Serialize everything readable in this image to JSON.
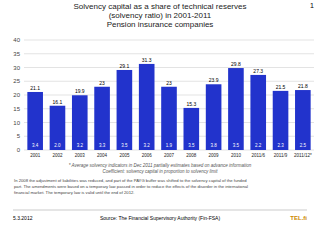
{
  "chart_data": {
    "type": "bar",
    "title": [
      "Solvency capital as a share of technical reserves",
      "(solvency ratio) in 2001-2011",
      "Pension insurance companies"
    ],
    "categories": [
      "2001",
      "2002",
      "2003",
      "2004",
      "2005",
      "2006",
      "2007",
      "2008",
      "2009",
      "2010",
      "2011/6",
      "2011/9",
      "2011/12*"
    ],
    "values": [
      21.1,
      16.1,
      19.9,
      23,
      29.1,
      31.3,
      23.0,
      15.3,
      23.9,
      29.8,
      27.3,
      21.5,
      21.8
    ],
    "coefficients": [
      3.4,
      2.0,
      3.2,
      3.3,
      3.5,
      3.2,
      1.9,
      3.5,
      3.8,
      3.5,
      2.2,
      2.3,
      2.5
    ],
    "color": "#2233CC",
    "ylim": [
      0,
      40
    ],
    "yticks": [
      0,
      5,
      10,
      15,
      20,
      25,
      30,
      35,
      40
    ],
    "grid": true,
    "data_labels": true,
    "annotations": [
      "1",
      "* Average solvency indicators in Dec 2011 partially estimates based on advance information",
      "Coefficient: solvency capital in proportion to solvency limit",
      "In 2008 the adjustment of liabilities was reduced, and part of the PAYG buffer was shifted to the solvency capital of the funded",
      "part. The amendments were based on a temporary law passed in order to reduce the effects of the disorder in the international",
      "financial market. The temporary law is valid until the end of 2012.",
      "5.3.2012",
      "Source: The Financial Supervisory Authority (Fin-FSA)",
      "TEL.fi"
    ]
  }
}
